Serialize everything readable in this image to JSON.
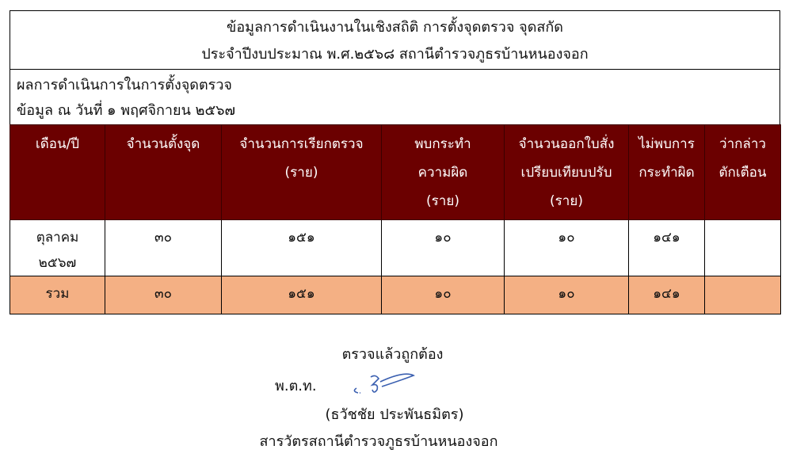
{
  "title": {
    "line1": "ข้อมูลการดำเนินงานในเชิงสถิติ การตั้งจุดตรวจ จุดสกัด",
    "line2": "ประจำปีงบประมาณ พ.ศ.๒๕๖๘ สถานีตำรวจภูธรบ้านหนองจอก"
  },
  "subtitle": {
    "line1": "ผลการดำเนินการในการตั้งจุดตรวจ",
    "line2": "ข้อมูล ณ วันที่ ๑ พฤศจิกายน  ๒๕๖๗"
  },
  "table": {
    "headers": [
      [
        "เดือน/ปี"
      ],
      [
        "จำนวนตั้งจุด"
      ],
      [
        "จำนวนการเรียกตรวจ",
        "(ราย)"
      ],
      [
        "พบกระทำ",
        "ความผิด",
        "(ราย)"
      ],
      [
        "จำนวนออกใบสั่ง",
        "เปรียบเทียบปรับ",
        "(ราย)"
      ],
      [
        "ไม่พบการ",
        "กระทำผิด"
      ],
      [
        "ว่ากล่าว",
        "ตักเตือน"
      ]
    ],
    "rows": [
      {
        "month": [
          "ตุลาคม",
          "๒๕๖๗"
        ],
        "cells": [
          "๓๐",
          "๑๕๑",
          "๑๐",
          "๑๐",
          "๑๔๑",
          ""
        ]
      }
    ],
    "total": {
      "label": "รวม",
      "cells": [
        "๓๐",
        "๑๕๑",
        "๑๐",
        "๑๐",
        "๑๔๑",
        ""
      ]
    },
    "colors": {
      "header_bg": "#6b0000",
      "total_bg": "#f4b084"
    }
  },
  "signature": {
    "verified": "ตรวจแล้วถูกต้อง",
    "rank": "พ.ต.ท.",
    "name": "(ธวัชชัย ประพันธมิตร)",
    "position": "สารวัตรสถานีตำรวจภูธรบ้านหนองจอก",
    "ink_color": "#3a5fb0"
  }
}
